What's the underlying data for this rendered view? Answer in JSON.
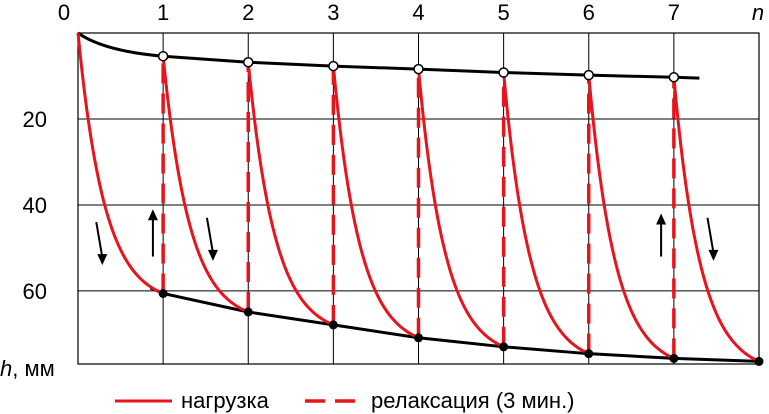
{
  "chart_data": {
    "type": "line",
    "x_axis": {
      "label": "n",
      "ticks": [
        "0",
        "1",
        "2",
        "3",
        "4",
        "5",
        "6",
        "7"
      ],
      "range": [
        0,
        8
      ]
    },
    "y_axis": {
      "label_italic": "h",
      "label_rest": ", мм",
      "ticks": [
        "20",
        "40",
        "60"
      ],
      "tick_values": [
        20,
        40,
        60
      ],
      "range": [
        0,
        77
      ],
      "inverted": true
    },
    "grid": true,
    "cycles": [
      {
        "n": 1,
        "top_h": 5.4,
        "bottom_h": 60.6
      },
      {
        "n": 2,
        "top_h": 6.8,
        "bottom_h": 64.9
      },
      {
        "n": 3,
        "top_h": 7.7,
        "bottom_h": 67.9
      },
      {
        "n": 4,
        "top_h": 8.4,
        "bottom_h": 70.9
      },
      {
        "n": 5,
        "top_h": 9.2,
        "bottom_h": 73.0
      },
      {
        "n": 6,
        "top_h": 9.8,
        "bottom_h": 74.6
      },
      {
        "n": 7,
        "top_h": 10.3,
        "bottom_h": 75.7
      }
    ],
    "final_point": {
      "n": 8,
      "h": 76.4
    },
    "upper_envelope_end": {
      "n": 7.3,
      "h": 10.5
    },
    "lower_envelope_start": {
      "n": 0.85,
      "h": 59.3
    },
    "arrows": [
      {
        "n": 0.25,
        "h_from": 44,
        "h_to": 54,
        "direction": "down"
      },
      {
        "n": 0.88,
        "h_from": 52,
        "h_to": 41,
        "direction": "up"
      },
      {
        "n": 1.55,
        "h_from": 43,
        "h_to": 53,
        "direction": "down"
      },
      {
        "n": 6.85,
        "h_from": 52,
        "h_to": 42,
        "direction": "up"
      },
      {
        "n": 7.43,
        "h_from": 43,
        "h_to": 53,
        "direction": "down"
      }
    ],
    "legend": {
      "load_label": "нагрузка",
      "relax_label": "релаксация (3 мин.)"
    },
    "colors": {
      "load": "#e8141c",
      "envelope": "#000000",
      "grid": "#000000"
    }
  }
}
